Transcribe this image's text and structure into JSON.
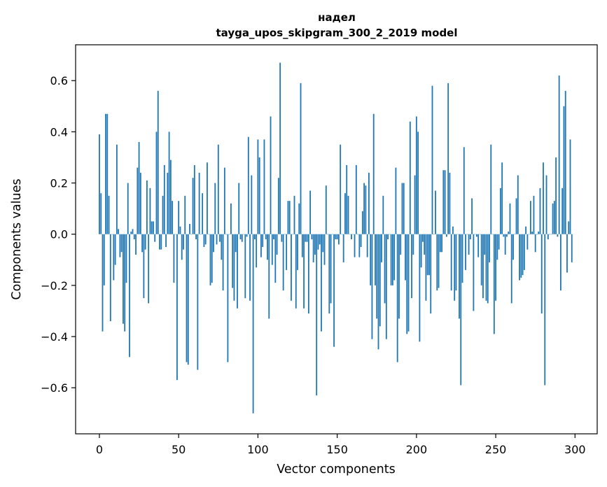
{
  "chart_data": {
    "type": "bar",
    "title": "надел",
    "subtitle": "tayga_upos_skipgram_300_2_2019 model",
    "xlabel": "Vector components",
    "ylabel": "Components values",
    "xlim": [
      -15,
      314
    ],
    "ylim": [
      -0.78,
      0.74
    ],
    "xticks": [
      0,
      50,
      100,
      150,
      200,
      250,
      300
    ],
    "xtick_labels": [
      "0",
      "50",
      "100",
      "150",
      "200",
      "250",
      "300"
    ],
    "yticks": [
      -0.6,
      -0.4,
      -0.2,
      0.0,
      0.2,
      0.4,
      0.6
    ],
    "ytick_labels": [
      "−0.6",
      "−0.4",
      "−0.2",
      "0.0",
      "0.2",
      "0.4",
      "0.6"
    ],
    "bar_color": "#1f77b4",
    "values": [
      0.39,
      0.16,
      -0.38,
      -0.2,
      0.47,
      0.47,
      0.15,
      -0.34,
      0.0,
      -0.18,
      -0.12,
      0.35,
      0.02,
      -0.09,
      -0.07,
      -0.35,
      -0.38,
      -0.19,
      0.2,
      -0.48,
      0.01,
      0.02,
      -0.02,
      -0.08,
      0.26,
      0.36,
      0.24,
      -0.07,
      -0.25,
      -0.06,
      0.21,
      -0.27,
      0.18,
      0.05,
      0.05,
      -0.03,
      0.4,
      0.56,
      -0.06,
      -0.06,
      0.15,
      0.27,
      -0.05,
      0.24,
      0.4,
      0.29,
      0.13,
      -0.19,
      0.0,
      -0.57,
      0.13,
      0.03,
      -0.1,
      -0.06,
      0.15,
      -0.5,
      -0.51,
      0.04,
      0.0,
      0.22,
      0.27,
      -0.02,
      -0.53,
      0.24,
      0.0,
      0.16,
      -0.05,
      -0.04,
      0.28,
      0.0,
      -0.2,
      -0.19,
      -0.07,
      0.2,
      -0.04,
      0.35,
      -0.03,
      -0.1,
      -0.22,
      0.26,
      0.0,
      -0.5,
      0.0,
      0.12,
      -0.21,
      -0.26,
      -0.07,
      -0.29,
      0.2,
      -0.02,
      -0.03,
      0.0,
      -0.25,
      -0.01,
      0.38,
      -0.26,
      0.23,
      -0.7,
      -0.02,
      -0.13,
      0.37,
      0.3,
      -0.09,
      -0.05,
      0.37,
      -0.02,
      -0.1,
      -0.33,
      0.46,
      -0.12,
      -0.02,
      -0.19,
      -0.08,
      0.22,
      0.67,
      -0.03,
      -0.22,
      0.0,
      -0.14,
      0.13,
      0.13,
      -0.26,
      0.0,
      0.15,
      -0.29,
      -0.14,
      0.12,
      0.59,
      -0.09,
      -0.29,
      -0.03,
      -0.03,
      -0.31,
      0.17,
      -0.02,
      -0.11,
      -0.08,
      -0.63,
      -0.06,
      -0.04,
      -0.38,
      -0.07,
      -0.12,
      0.19,
      0.0,
      -0.31,
      -0.27,
      0.0,
      -0.44,
      -0.02,
      -0.02,
      -0.04,
      0.35,
      0.0,
      -0.11,
      0.16,
      0.27,
      0.15,
      0.0,
      -0.02,
      0.0,
      -0.09,
      0.27,
      0.0,
      -0.09,
      -0.05,
      0.09,
      0.2,
      0.19,
      -0.09,
      0.24,
      -0.2,
      -0.41,
      0.47,
      -0.2,
      -0.33,
      -0.45,
      -0.36,
      -0.11,
      0.15,
      -0.27,
      -0.41,
      -0.02,
      0.0,
      -0.2,
      -0.2,
      -0.18,
      0.26,
      -0.5,
      -0.33,
      -0.08,
      0.2,
      0.2,
      -0.18,
      -0.39,
      -0.38,
      0.44,
      -0.25,
      -0.08,
      0.23,
      0.46,
      0.4,
      -0.42,
      -0.13,
      -0.03,
      -0.08,
      -0.26,
      -0.16,
      -0.16,
      -0.31,
      0.58,
      0.0,
      0.17,
      -0.22,
      -0.21,
      -0.07,
      -0.07,
      0.25,
      0.25,
      -0.01,
      0.59,
      0.24,
      -0.22,
      0.03,
      -0.26,
      -0.22,
      0.0,
      -0.33,
      -0.59,
      -0.19,
      0.34,
      -0.14,
      0.0,
      -0.08,
      -0.02,
      0.14,
      -0.3,
      0.0,
      -0.01,
      -0.09,
      0.0,
      -0.2,
      -0.25,
      -0.08,
      -0.26,
      -0.27,
      -0.11,
      0.35,
      0.0,
      -0.39,
      -0.26,
      -0.1,
      -0.06,
      0.18,
      0.28,
      -0.01,
      -0.08,
      -0.01,
      0.01,
      0.12,
      -0.27,
      -0.1,
      0.0,
      0.14,
      0.23,
      -0.18,
      -0.17,
      -0.16,
      -0.14,
      0.03,
      -0.06,
      0.0,
      0.13,
      0.01,
      0.15,
      -0.07,
      0.0,
      0.01,
      0.18,
      -0.31,
      0.28,
      -0.59,
      0.23,
      -0.02,
      0.0,
      0.0,
      0.12,
      0.13,
      0.3,
      -0.01,
      0.62,
      -0.22,
      0.18,
      0.5,
      0.56,
      -0.15,
      0.05,
      0.37,
      -0.11
    ]
  }
}
